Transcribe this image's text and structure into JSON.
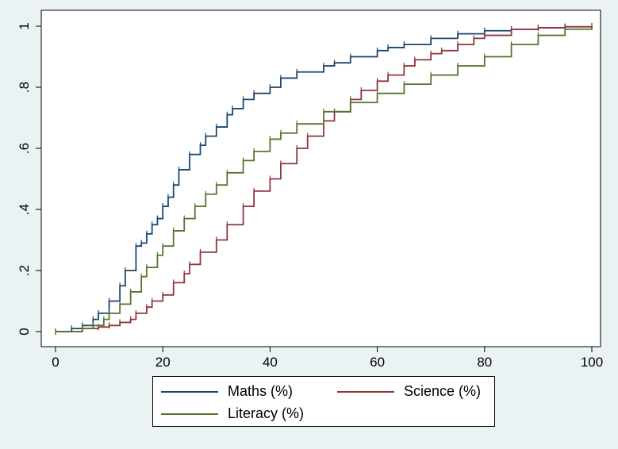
{
  "chart_data": {
    "type": "line",
    "title": "",
    "xlabel": "",
    "ylabel": "",
    "xlim": [
      0,
      100
    ],
    "ylim": [
      0,
      1
    ],
    "x_ticks": [
      0,
      20,
      40,
      60,
      80,
      100
    ],
    "x_tick_labels": [
      "0",
      "20",
      "40",
      "60",
      "80",
      "100"
    ],
    "y_ticks": [
      0,
      0.2,
      0.4,
      0.6,
      0.8,
      1
    ],
    "y_tick_labels": [
      "0",
      ".2",
      ".4",
      ".6",
      ".8",
      "1"
    ],
    "grid": false,
    "legend_position": "bottom",
    "series": [
      {
        "name": "Maths (%)",
        "color": "#1a476f",
        "x": [
          0,
          3,
          5,
          7,
          8,
          10,
          12,
          13,
          15,
          16,
          17,
          18,
          19,
          20,
          21,
          22,
          23,
          25,
          27,
          28,
          30,
          32,
          33,
          35,
          37,
          40,
          42,
          45,
          50,
          52,
          55,
          60,
          62,
          65,
          70,
          75,
          80,
          85,
          90,
          95,
          100
        ],
        "y": [
          0,
          0.01,
          0.02,
          0.04,
          0.06,
          0.1,
          0.15,
          0.2,
          0.28,
          0.29,
          0.32,
          0.35,
          0.37,
          0.41,
          0.44,
          0.48,
          0.53,
          0.58,
          0.61,
          0.64,
          0.67,
          0.71,
          0.73,
          0.76,
          0.78,
          0.8,
          0.83,
          0.85,
          0.87,
          0.88,
          0.9,
          0.92,
          0.93,
          0.94,
          0.96,
          0.975,
          0.985,
          0.99,
          0.995,
          0.998,
          1.0
        ]
      },
      {
        "name": "Science (%)",
        "color": "#90353b",
        "x": [
          0,
          5,
          8,
          10,
          12,
          14,
          15,
          17,
          18,
          20,
          22,
          24,
          25,
          27,
          30,
          32,
          35,
          37,
          40,
          42,
          45,
          47,
          50,
          52,
          55,
          57,
          60,
          62,
          65,
          67,
          70,
          72,
          75,
          78,
          80,
          85,
          90,
          95,
          100
        ],
        "y": [
          0,
          0.01,
          0.015,
          0.02,
          0.03,
          0.04,
          0.06,
          0.08,
          0.1,
          0.12,
          0.16,
          0.19,
          0.22,
          0.26,
          0.3,
          0.35,
          0.41,
          0.46,
          0.5,
          0.55,
          0.6,
          0.64,
          0.69,
          0.72,
          0.76,
          0.79,
          0.82,
          0.84,
          0.87,
          0.89,
          0.91,
          0.92,
          0.94,
          0.96,
          0.97,
          0.99,
          0.995,
          0.998,
          1.0
        ]
      },
      {
        "name": "Literacy (%)",
        "color": "#55752f",
        "x": [
          0,
          5,
          7,
          9,
          10,
          12,
          14,
          16,
          17,
          19,
          20,
          22,
          24,
          26,
          28,
          30,
          32,
          35,
          37,
          40,
          42,
          45,
          50,
          55,
          60,
          65,
          70,
          75,
          80,
          85,
          90,
          95,
          100
        ],
        "y": [
          0,
          0.01,
          0.02,
          0.04,
          0.06,
          0.09,
          0.13,
          0.18,
          0.21,
          0.25,
          0.28,
          0.33,
          0.37,
          0.41,
          0.45,
          0.48,
          0.52,
          0.56,
          0.59,
          0.63,
          0.65,
          0.68,
          0.72,
          0.75,
          0.78,
          0.81,
          0.84,
          0.87,
          0.9,
          0.94,
          0.97,
          0.99,
          1.0
        ]
      }
    ]
  }
}
